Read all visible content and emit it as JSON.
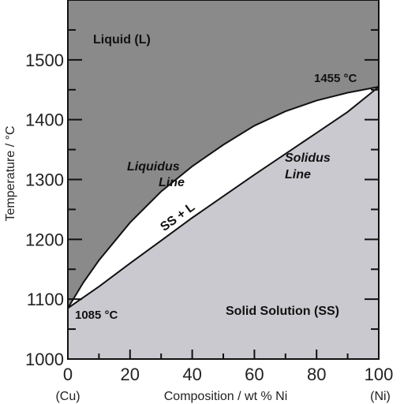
{
  "chart_data": {
    "type": "area",
    "title": "",
    "xlabel": "Composition / wt % Ni",
    "ylabel": "Temperature / °C",
    "xlim": [
      0,
      100
    ],
    "ylim": [
      1000,
      1600
    ],
    "x_ticks": [
      0,
      20,
      40,
      60,
      80,
      100
    ],
    "y_ticks": [
      1000,
      1100,
      1200,
      1300,
      1400,
      1500
    ],
    "x_end_labels": {
      "left": "(Cu)",
      "right": "(Ni)"
    },
    "grid": false,
    "series": [
      {
        "name": "Liquidus Line",
        "x": [
          0,
          5,
          10,
          20,
          30,
          40,
          50,
          60,
          70,
          80,
          90,
          100
        ],
        "y": [
          1085,
          1128,
          1165,
          1228,
          1280,
          1322,
          1358,
          1390,
          1414,
          1432,
          1445,
          1455
        ]
      },
      {
        "name": "Solidus Line",
        "x": [
          0,
          10,
          20,
          30,
          40,
          50,
          60,
          70,
          80,
          90,
          100
        ],
        "y": [
          1085,
          1121,
          1160,
          1198,
          1236,
          1272,
          1308,
          1343,
          1378,
          1413,
          1455
        ]
      }
    ],
    "regions": {
      "liquid": "Liquid (L)",
      "two_phase": "SS + L",
      "solid": "Solid Solution (SS)"
    },
    "annotations": {
      "liquidus_line1": "Liquidus",
      "liquidus_line2": "Line",
      "solidus_line1": "Solidus",
      "solidus_line2": "Line",
      "cu_melting": "1085 °C",
      "ni_melting": "1455 °C"
    },
    "colors": {
      "liquid": "#8a8a8a",
      "solid": "#c9c9cf",
      "two_phase": "#ffffff",
      "line": "#111111"
    }
  }
}
